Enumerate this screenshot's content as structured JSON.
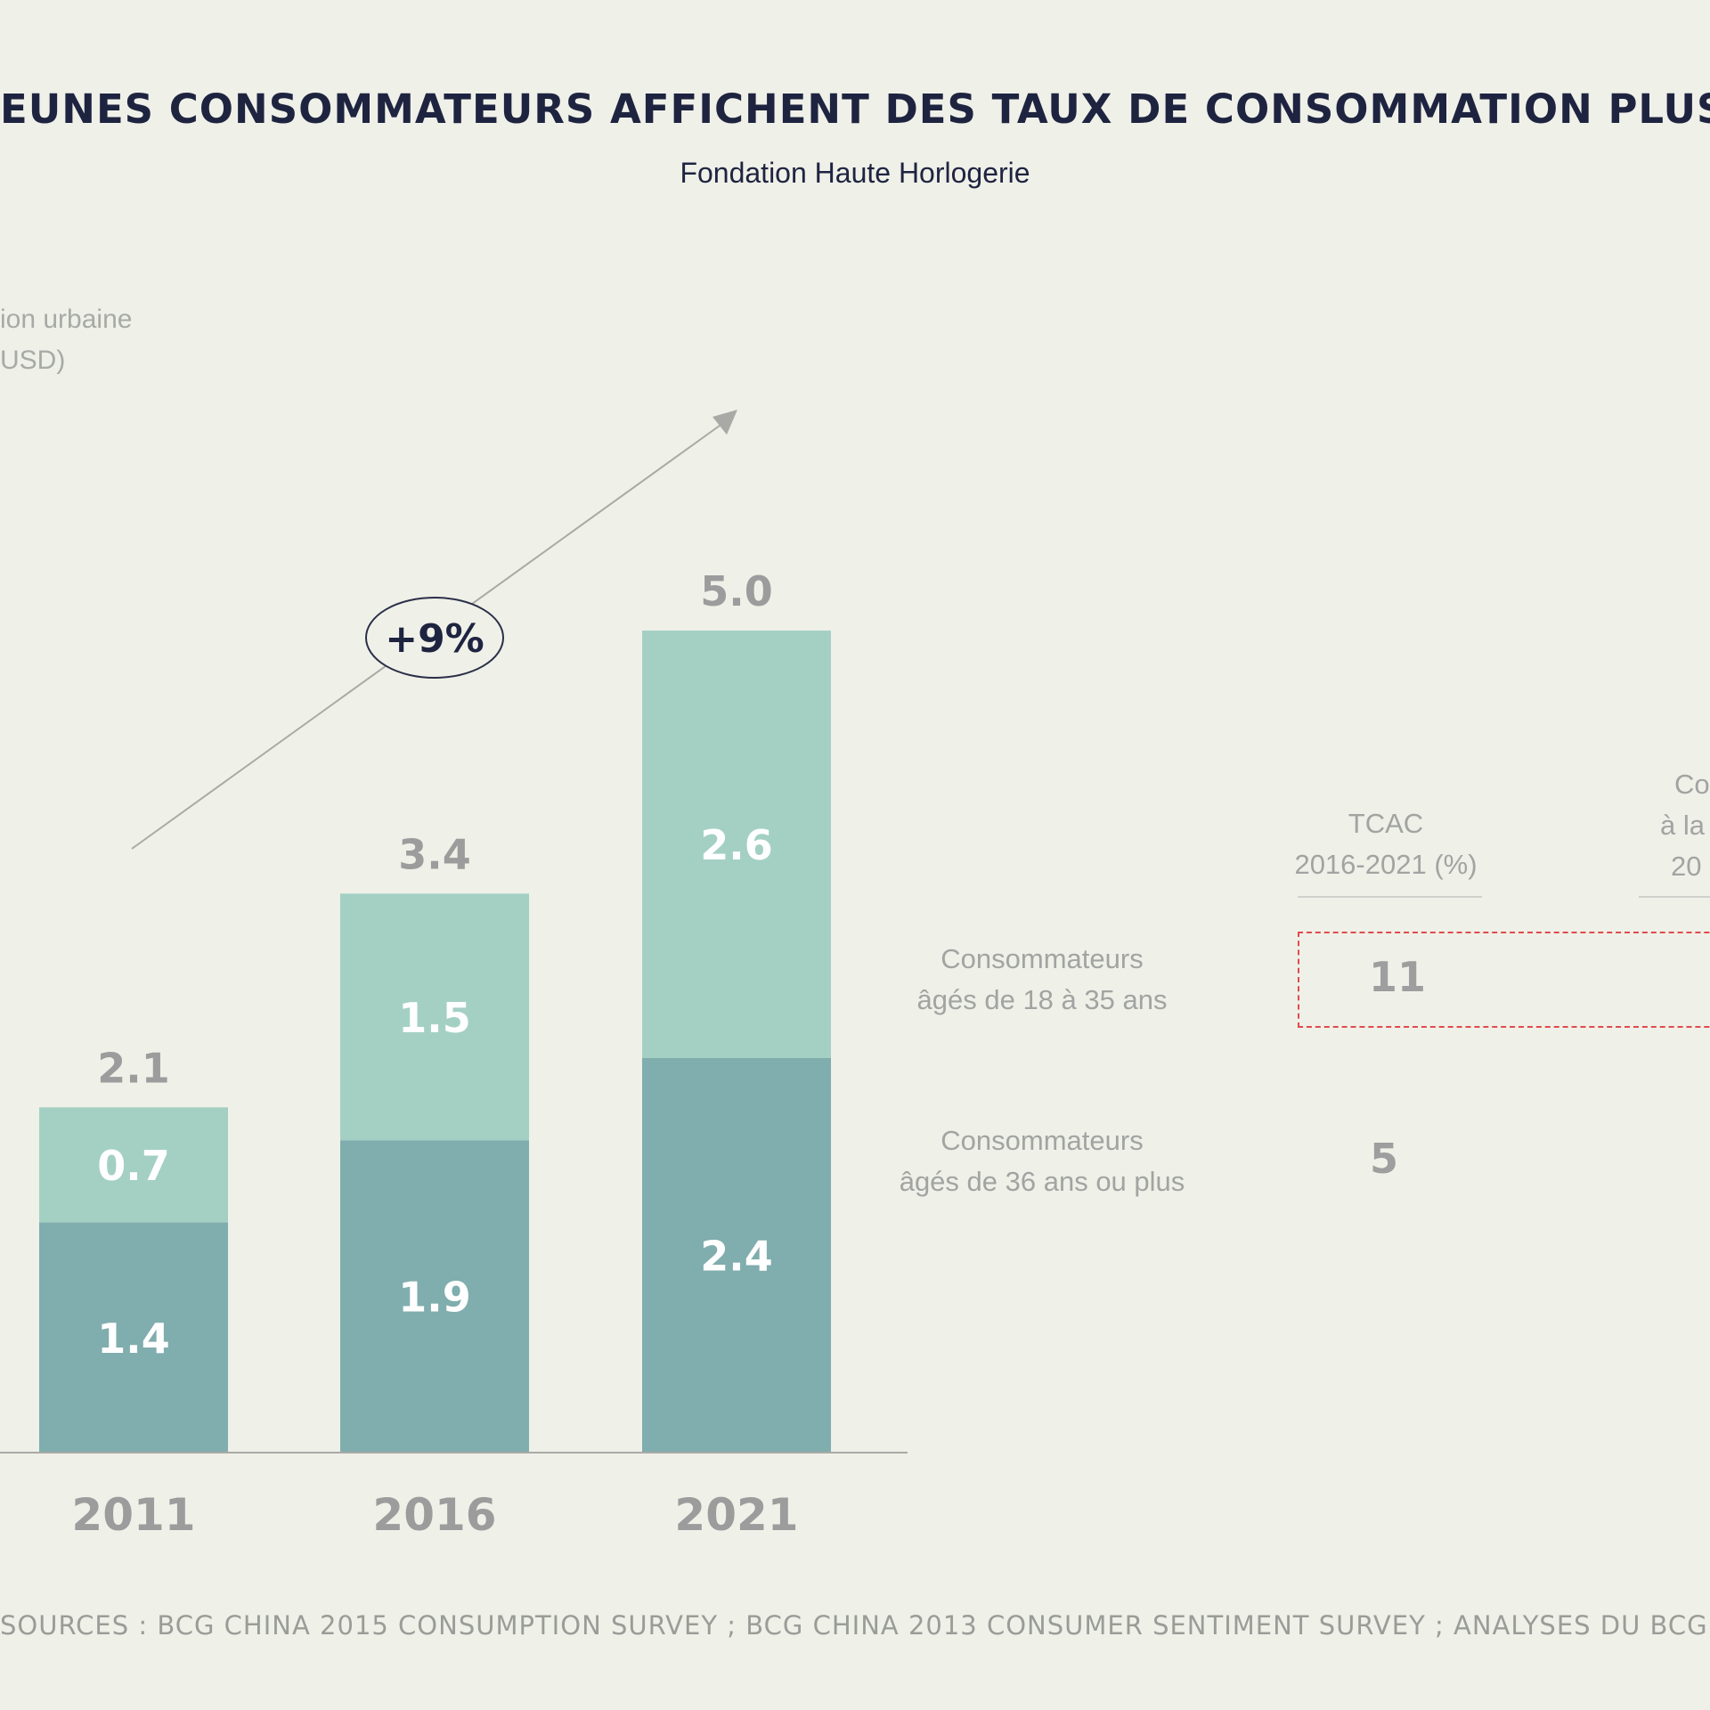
{
  "title": "EUNES CONSOMMATEURS AFFICHENT DES TAUX DE CONSOMMATION PLUS ÉL",
  "subtitle": "Fondation Haute Horlogerie",
  "y_label_line1": "ion urbaine",
  "y_label_line2": "USD)",
  "cagr_label": "+9%",
  "colors": {
    "background": "#eff0e8",
    "young": "#a4d0c4",
    "older": "#80adad",
    "axis": "#a9aaa6",
    "total_label": "#9c9c9c",
    "dashed": "#e04b4b"
  },
  "chart_data": {
    "type": "bar",
    "stacked": true,
    "categories": [
      "2011",
      "2016",
      "2021"
    ],
    "series": [
      {
        "values": [
          1.4,
          1.9,
          2.4
        ]
      },
      {
        "values": [
          0.7,
          1.5,
          2.6
        ]
      }
    ],
    "totals": [
      "2.1",
      "3.4",
      "5.0"
    ],
    "segment_labels": [
      [
        "1.4",
        "1.9",
        "2.4"
      ],
      [
        "0.7",
        "1.5",
        "2.6"
      ]
    ],
    "ylim": [
      0,
      5.0
    ],
    "grid": false
  },
  "side_table": {
    "col1_header_line1": "TCAC",
    "col1_header_line2": "2016-2021 (%)",
    "col2_header_line1": "Co",
    "col2_header_line2": "à la",
    "col2_header_line3": "20",
    "rows": [
      {
        "label_line1": "Consommateurs",
        "label_line2": "âgés de 18 à 35 ans",
        "value": "11"
      },
      {
        "label_line1": "Consommateurs",
        "label_line2": "âgés de 36 ans ou plus",
        "value": "5"
      }
    ]
  },
  "sources": "SOURCES : BCG CHINA 2015 CONSUMPTION SURVEY ; BCG CHINA 2013 CONSUMER SENTIMENT SURVEY ; ANALYSES DU BCG"
}
